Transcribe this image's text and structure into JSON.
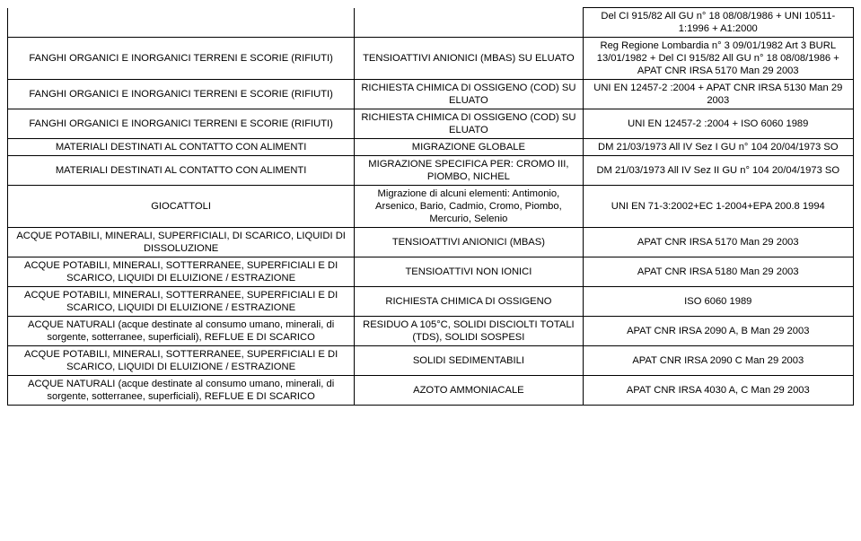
{
  "table": {
    "rows": [
      {
        "c1": "",
        "c2": "",
        "c3": "Del CI 915/82 All GU n° 18 08/08/1986 + UNI 10511-1:1996 + A1:2000"
      },
      {
        "c1": "FANGHI ORGANICI E INORGANICI TERRENI E SCORIE (RIFIUTI)",
        "c2": "TENSIOATTIVI ANIONICI (MBAS) SU ELUATO",
        "c3": "Reg Regione Lombardia n° 3 09/01/1982 Art 3 BURL 13/01/1982 + Del CI 915/82 All GU n° 18 08/08/1986 + APAT CNR IRSA 5170 Man 29 2003"
      },
      {
        "c1": "FANGHI ORGANICI E INORGANICI TERRENI E SCORIE (RIFIUTI)",
        "c2": "RICHIESTA CHIMICA DI OSSIGENO (COD) SU ELUATO",
        "c3": "UNI EN 12457-2 :2004 + APAT CNR IRSA 5130 Man 29 2003"
      },
      {
        "c1": "FANGHI ORGANICI E INORGANICI TERRENI E SCORIE (RIFIUTI)",
        "c2": "RICHIESTA CHIMICA DI OSSIGENO (COD) SU ELUATO",
        "c3": "UNI EN 12457-2 :2004 + ISO 6060 1989"
      },
      {
        "c1": "MATERIALI DESTINATI AL CONTATTO CON ALIMENTI",
        "c2": "MIGRAZIONE GLOBALE",
        "c3": "DM 21/03/1973 All IV Sez I GU n° 104 20/04/1973 SO"
      },
      {
        "c1": "MATERIALI DESTINATI AL CONTATTO CON ALIMENTI",
        "c2": "MIGRAZIONE SPECIFICA PER: CROMO III, PIOMBO, NICHEL",
        "c3": "DM 21/03/1973 All IV Sez II GU n° 104 20/04/1973 SO"
      },
      {
        "c1": "GIOCATTOLI",
        "c2": "Migrazione di alcuni elementi: Antimonio, Arsenico, Bario, Cadmio, Cromo, Piombo, Mercurio, Selenio",
        "c3": "UNI EN 71-3:2002+EC 1-2004+EPA 200.8 1994"
      },
      {
        "c1": "ACQUE POTABILI, MINERALI, SUPERFICIALI, DI SCARICO, LIQUIDI DI DISSOLUZIONE",
        "c2": "TENSIOATTIVI ANIONICI (MBAS)",
        "c3": "APAT CNR IRSA 5170 Man 29 2003"
      },
      {
        "c1": "ACQUE POTABILI, MINERALI, SOTTERRANEE, SUPERFICIALI E DI SCARICO, LIQUIDI DI ELUIZIONE / ESTRAZIONE",
        "c2": "TENSIOATTIVI NON IONICI",
        "c3": "APAT CNR IRSA 5180 Man 29 2003"
      },
      {
        "c1": "ACQUE POTABILI, MINERALI, SOTTERRANEE, SUPERFICIALI E DI SCARICO, LIQUIDI DI ELUIZIONE / ESTRAZIONE",
        "c2": "RICHIESTA CHIMICA DI OSSIGENO",
        "c3": "ISO 6060 1989"
      },
      {
        "c1": "ACQUE NATURALI (acque destinate al consumo umano, minerali, di sorgente, sotterranee, superficiali), REFLUE E DI SCARICO",
        "c2": "RESIDUO A 105°C, SOLIDI DISCIOLTI TOTALI (TDS), SOLIDI SOSPESI",
        "c3": "APAT CNR IRSA 2090 A, B Man 29 2003"
      },
      {
        "c1": "ACQUE POTABILI, MINERALI, SOTTERRANEE, SUPERFICIALI E DI SCARICO, LIQUIDI DI ELUIZIONE / ESTRAZIONE",
        "c2": "SOLIDI SEDIMENTABILI",
        "c3": "APAT CNR IRSA 2090 C Man 29 2003"
      },
      {
        "c1": "ACQUE NATURALI (acque destinate al consumo umano, minerali, di sorgente, sotterranee, superficiali), REFLUE E DI SCARICO",
        "c2": "AZOTO AMMONIACALE",
        "c3": "APAT CNR IRSA 4030 A, C Man 29 2003"
      }
    ]
  }
}
